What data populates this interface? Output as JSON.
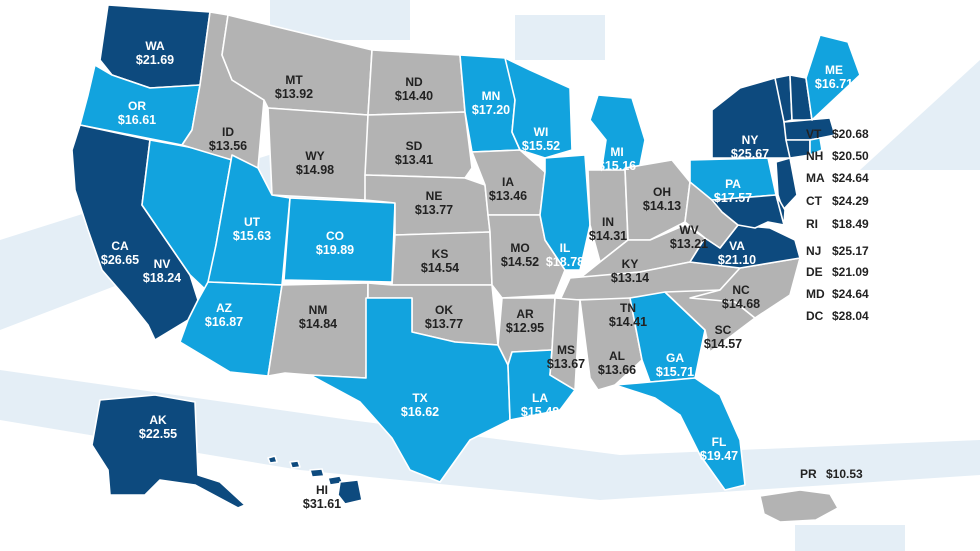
{
  "colors": {
    "dark": "#0d4a7e",
    "mid": "#12a3de",
    "gray": "#b3b3b3",
    "bg_band": "#e4eef6",
    "text_dark": "#222222",
    "text_light": "#ffffff"
  },
  "states": [
    {
      "abbr": "WA",
      "value": "$21.69",
      "tier": "dark"
    },
    {
      "abbr": "OR",
      "value": "$16.61",
      "tier": "mid"
    },
    {
      "abbr": "CA",
      "value": "$26.65",
      "tier": "dark"
    },
    {
      "abbr": "NV",
      "value": "$18.24",
      "tier": "mid"
    },
    {
      "abbr": "ID",
      "value": "$13.56",
      "tier": "gray"
    },
    {
      "abbr": "MT",
      "value": "$13.92",
      "tier": "gray"
    },
    {
      "abbr": "WY",
      "value": "$14.98",
      "tier": "gray"
    },
    {
      "abbr": "UT",
      "value": "$15.63",
      "tier": "mid"
    },
    {
      "abbr": "CO",
      "value": "$19.89",
      "tier": "mid"
    },
    {
      "abbr": "AZ",
      "value": "$16.87",
      "tier": "mid"
    },
    {
      "abbr": "NM",
      "value": "$14.84",
      "tier": "gray"
    },
    {
      "abbr": "ND",
      "value": "$14.40",
      "tier": "gray"
    },
    {
      "abbr": "SD",
      "value": "$13.41",
      "tier": "gray"
    },
    {
      "abbr": "NE",
      "value": "$13.77",
      "tier": "gray"
    },
    {
      "abbr": "KS",
      "value": "$14.54",
      "tier": "gray"
    },
    {
      "abbr": "OK",
      "value": "$13.77",
      "tier": "gray"
    },
    {
      "abbr": "TX",
      "value": "$16.62",
      "tier": "mid"
    },
    {
      "abbr": "MN",
      "value": "$17.20",
      "tier": "mid"
    },
    {
      "abbr": "IA",
      "value": "$13.46",
      "tier": "gray"
    },
    {
      "abbr": "MO",
      "value": "$14.52",
      "tier": "gray"
    },
    {
      "abbr": "AR",
      "value": "$12.95",
      "tier": "gray"
    },
    {
      "abbr": "LA",
      "value": "$15.48",
      "tier": "mid"
    },
    {
      "abbr": "WI",
      "value": "$15.52",
      "tier": "mid"
    },
    {
      "abbr": "IL",
      "value": "$18.78",
      "tier": "mid"
    },
    {
      "abbr": "MI",
      "value": "$15.16",
      "tier": "mid"
    },
    {
      "abbr": "IN",
      "value": "$14.31",
      "tier": "gray"
    },
    {
      "abbr": "OH",
      "value": "$14.13",
      "tier": "gray"
    },
    {
      "abbr": "KY",
      "value": "$13.14",
      "tier": "gray"
    },
    {
      "abbr": "TN",
      "value": "$14.41",
      "tier": "gray"
    },
    {
      "abbr": "MS",
      "value": "$13.67",
      "tier": "gray"
    },
    {
      "abbr": "AL",
      "value": "$13.66",
      "tier": "gray"
    },
    {
      "abbr": "GA",
      "value": "$15.71",
      "tier": "mid"
    },
    {
      "abbr": "FL",
      "value": "$19.47",
      "tier": "mid"
    },
    {
      "abbr": "SC",
      "value": "$14.57",
      "tier": "gray"
    },
    {
      "abbr": "NC",
      "value": "$14.68",
      "tier": "gray"
    },
    {
      "abbr": "VA",
      "value": "$21.10",
      "tier": "dark"
    },
    {
      "abbr": "WV",
      "value": "$13.21",
      "tier": "gray"
    },
    {
      "abbr": "PA",
      "value": "$17.57",
      "tier": "mid"
    },
    {
      "abbr": "NY",
      "value": "$25.67",
      "tier": "dark"
    },
    {
      "abbr": "ME",
      "value": "$16.71",
      "tier": "mid"
    },
    {
      "abbr": "AK",
      "value": "$22.55",
      "tier": "dark"
    },
    {
      "abbr": "HI",
      "value": "$31.61",
      "tier": "dark"
    }
  ],
  "callouts": [
    {
      "abbr": "VT",
      "value": "$20.68",
      "tier": "dark"
    },
    {
      "abbr": "NH",
      "value": "$20.50",
      "tier": "dark"
    },
    {
      "abbr": "MA",
      "value": "$24.64",
      "tier": "dark"
    },
    {
      "abbr": "CT",
      "value": "$24.29",
      "tier": "dark"
    },
    {
      "abbr": "RI",
      "value": "$18.49",
      "tier": "mid"
    },
    {
      "abbr": "NJ",
      "value": "$25.17",
      "tier": "dark"
    },
    {
      "abbr": "DE",
      "value": "$21.09",
      "tier": "dark"
    },
    {
      "abbr": "MD",
      "value": "$24.64",
      "tier": "dark"
    },
    {
      "abbr": "DC",
      "value": "$28.04",
      "tier": "dark"
    },
    {
      "abbr": "PR",
      "value": "$10.53",
      "tier": "gray"
    }
  ]
}
